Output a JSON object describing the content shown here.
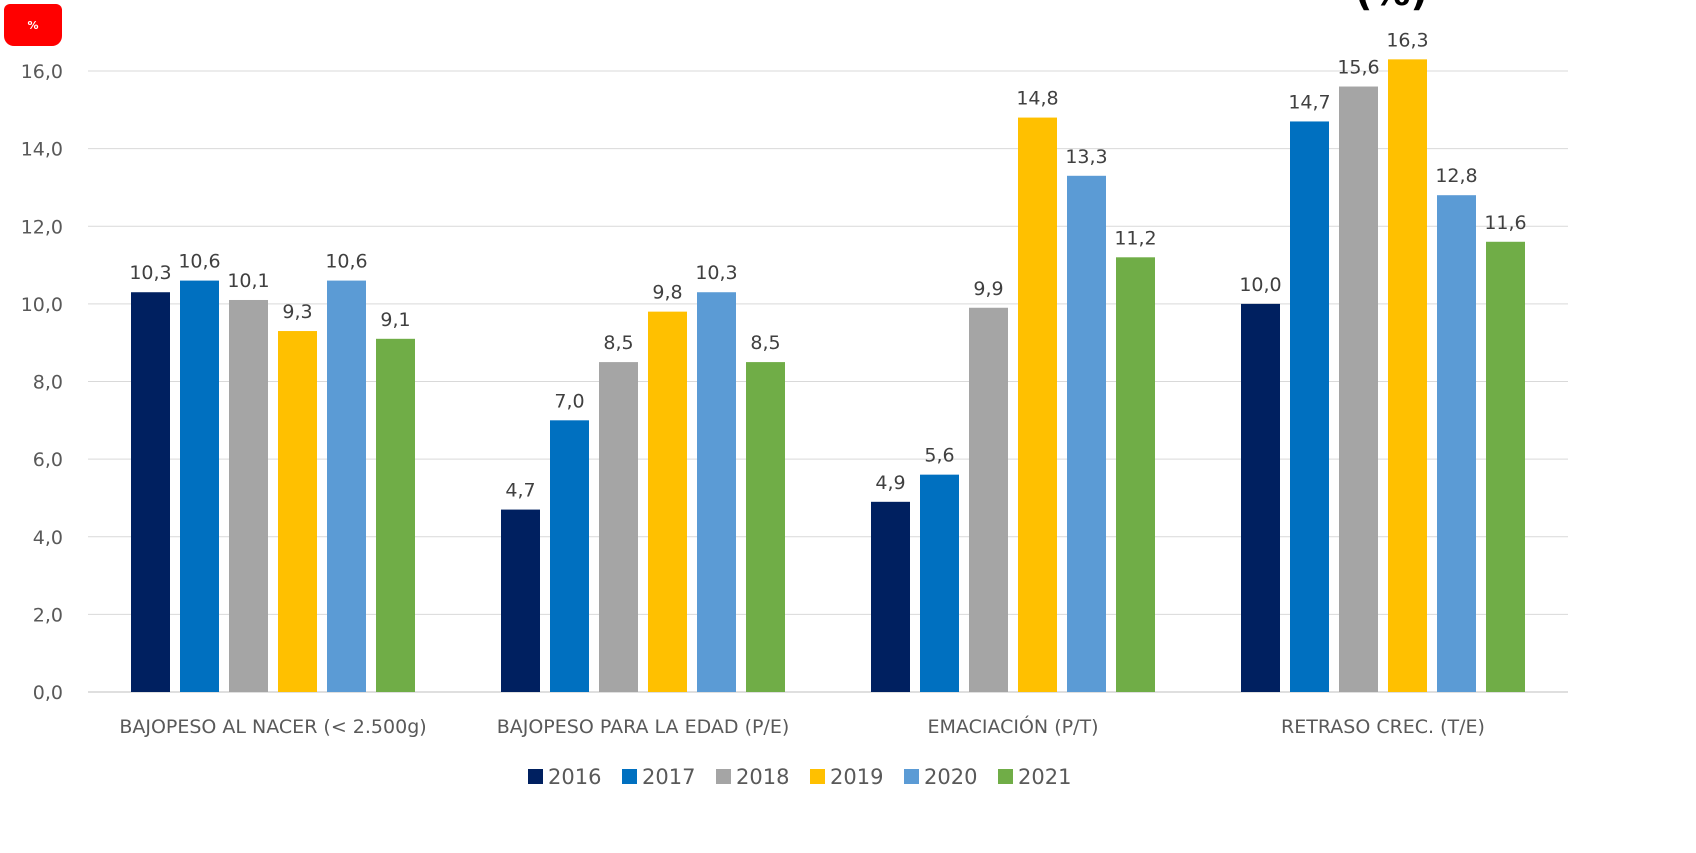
{
  "unit_badge": "%",
  "title_fragment": "(%)",
  "chart_data": {
    "type": "bar",
    "categories": [
      "BAJOPESO AL NACER (< 2.500g)",
      "BAJOPESO PARA LA EDAD (P/E)",
      "EMACIACIÓN (P/T)",
      "RETRASO CREC. (T/E)"
    ],
    "series": [
      {
        "name": "2016",
        "color": "#002060",
        "values": [
          10.3,
          4.7,
          4.9,
          10.0
        ],
        "labels": [
          "10,3",
          "4,7",
          "4,9",
          "10,0"
        ]
      },
      {
        "name": "2017",
        "color": "#0070c0",
        "values": [
          10.6,
          7.0,
          5.6,
          14.7
        ],
        "labels": [
          "10,6",
          "7,0",
          "5,6",
          "14,7"
        ]
      },
      {
        "name": "2018",
        "color": "#a5a5a5",
        "values": [
          10.1,
          8.5,
          9.9,
          15.6
        ],
        "labels": [
          "10,1",
          "8,5",
          "9,9",
          "15,6"
        ]
      },
      {
        "name": "2019",
        "color": "#ffc000",
        "values": [
          9.3,
          9.8,
          14.8,
          16.3
        ],
        "labels": [
          "9,3",
          "9,8",
          "14,8",
          "16,3"
        ]
      },
      {
        "name": "2020",
        "color": "#5b9bd5",
        "values": [
          10.6,
          10.3,
          13.3,
          12.8
        ],
        "labels": [
          "10,6",
          "10,3",
          "13,3",
          "12,8"
        ]
      },
      {
        "name": "2021",
        "color": "#70ad47",
        "values": [
          9.1,
          8.5,
          11.2,
          11.6
        ],
        "labels": [
          "9,1",
          "8,5",
          "11,2",
          "11,6"
        ]
      }
    ],
    "ylim": [
      0,
      16
    ],
    "yticks": [
      0,
      2,
      4,
      6,
      8,
      10,
      12,
      14,
      16
    ],
    "ytick_labels": [
      "0,0",
      "2,0",
      "4,0",
      "6,0",
      "8,0",
      "10,0",
      "12,0",
      "14,0",
      "16,0"
    ],
    "grid": true,
    "legend": "bottom",
    "xlabel": "",
    "ylabel": ""
  }
}
